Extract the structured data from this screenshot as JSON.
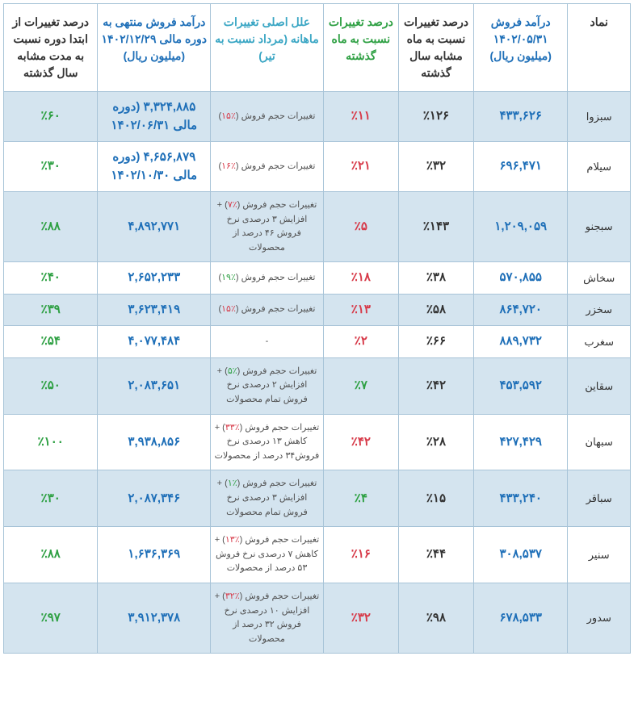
{
  "headers": [
    {
      "key": "symbol",
      "text": "نماد",
      "class": "header-black"
    },
    {
      "key": "revenue",
      "text": "درآمد فروش ۱۴۰۲/۰۵/۳۱ (میلیون ریال)",
      "class": "header-blue"
    },
    {
      "key": "pctYoY",
      "text": "درصد تغییرات نسبت به ماه مشابه سال گذشته",
      "class": "header-black"
    },
    {
      "key": "pctMoM",
      "text": "درصد تغییرات نسبت به ماه گذشته",
      "class": "header-green"
    },
    {
      "key": "reason",
      "text": "علل اصلی تغییرات ماهانه (مرداد نسبت به تیر)",
      "class": "header-teal"
    },
    {
      "key": "revenueYTD",
      "text": "درآمد فروش منتهی به دوره مالی ۱۴۰۲/۱۲/۲۹ (میلیون ریال)",
      "class": "header-blue"
    },
    {
      "key": "pctYTD",
      "text": "درصد تغییرات از ابتدا دوره نسبت به مدت مشابه سال گذشته",
      "class": "header-black"
    }
  ],
  "rows": [
    {
      "symbol": "سبزوا",
      "revenue": "۴۳۳,۶۲۶",
      "pctYoY": "٪۱۲۶",
      "pctYoYClass": "cell-black",
      "pctMoM": "٪۱۱",
      "pctMoMClass": "cell-red",
      "reasonHtml": "تغییرات حجم فروش (<span class='red'>٪۱۵</span>)",
      "revenueYTD": "۳,۳۲۴,۸۸۵ (دوره مالی ۱۴۰۲/۰۶/۳۱",
      "pctYTD": "٪۶۰",
      "pctYTDClass": "cell-green"
    },
    {
      "symbol": "سیلام",
      "revenue": "۶۹۶,۴۷۱",
      "pctYoY": "٪۳۲",
      "pctYoYClass": "cell-black",
      "pctMoM": "٪۲۱",
      "pctMoMClass": "cell-red",
      "reasonHtml": "تغییرات حجم فروش (<span class='red'>٪۱۶</span>)",
      "revenueYTD": "۴,۶۵۶,۸۷۹ (دوره مالی ۱۴۰۲/۱۰/۳۰",
      "pctYTD": "٪۳۰",
      "pctYTDClass": "cell-green"
    },
    {
      "symbol": "سبجنو",
      "revenue": "۱,۲۰۹,۰۵۹",
      "pctYoY": "٪۱۴۳",
      "pctYoYClass": "cell-black",
      "pctMoM": "٪۵",
      "pctMoMClass": "cell-red",
      "reasonHtml": "تغییرات حجم فروش (<span class='red'>٪۷</span>) + افزایش ۳ درصدی نرخ فروش ۴۶ درصد از محصولات",
      "revenueYTD": "۴,۸۹۲,۷۷۱",
      "pctYTD": "٪۸۸",
      "pctYTDClass": "cell-green"
    },
    {
      "symbol": "سخاش",
      "revenue": "۵۷۰,۸۵۵",
      "pctYoY": "٪۳۸",
      "pctYoYClass": "cell-black",
      "pctMoM": "٪۱۸",
      "pctMoMClass": "cell-red",
      "reasonHtml": "تغییرات حجم فروش (<span class='green'>٪۱۹</span>)",
      "revenueYTD": "۲,۶۵۲,۲۳۳",
      "pctYTD": "٪۴۰",
      "pctYTDClass": "cell-green"
    },
    {
      "symbol": "سخزر",
      "revenue": "۸۶۴,۷۲۰",
      "pctYoY": "٪۵۸",
      "pctYoYClass": "cell-black",
      "pctMoM": "٪۱۳",
      "pctMoMClass": "cell-red",
      "reasonHtml": "تغییرات حجم فروش (<span class='red'>٪۱۵</span>)",
      "revenueYTD": "۳,۶۲۳,۴۱۹",
      "pctYTD": "٪۳۹",
      "pctYTDClass": "cell-green"
    },
    {
      "symbol": "سغرب",
      "revenue": "۸۸۹,۷۳۲",
      "pctYoY": "٪۶۶",
      "pctYoYClass": "cell-black",
      "pctMoM": "٪۲",
      "pctMoMClass": "cell-red",
      "reasonHtml": "-",
      "revenueYTD": "۴,۰۷۷,۴۸۴",
      "pctYTD": "٪۵۴",
      "pctYTDClass": "cell-green"
    },
    {
      "symbol": "سقاین",
      "revenue": "۴۵۳,۵۹۲",
      "pctYoY": "٪۴۲",
      "pctYoYClass": "cell-black",
      "pctMoM": "٪۷",
      "pctMoMClass": "cell-green",
      "reasonHtml": "تغییرات حجم فروش (<span class='green'>٪۵</span>) + افزایش ۲ درصدی نرخ فروش تمام محصولات",
      "revenueYTD": "۲,۰۸۳,۶۵۱",
      "pctYTD": "٪۵۰",
      "pctYTDClass": "cell-green"
    },
    {
      "symbol": "سبهان",
      "revenue": "۴۲۷,۴۲۹",
      "pctYoY": "٪۲۸",
      "pctYoYClass": "cell-black",
      "pctMoM": "٪۴۲",
      "pctMoMClass": "cell-red",
      "reasonHtml": "تغییرات حجم فروش (<span class='red'>٪۳۳</span>) + کاهش ۱۳ درصدی نرخ فروش۳۴ درصد از محصولات",
      "revenueYTD": "۳,۹۳۸,۸۵۶",
      "pctYTD": "٪۱۰۰",
      "pctYTDClass": "cell-green"
    },
    {
      "symbol": "سباقر",
      "revenue": "۴۳۳,۲۴۰",
      "pctYoY": "٪۱۵",
      "pctYoYClass": "cell-black",
      "pctMoM": "٪۴",
      "pctMoMClass": "cell-green",
      "reasonHtml": "تغییرات حجم فروش (<span class='green'>٪۱</span>) + افزایش ۳ درصدی نرخ فروش تمام محصولات",
      "revenueYTD": "۲,۰۸۷,۳۴۶",
      "pctYTD": "٪۳۰",
      "pctYTDClass": "cell-green"
    },
    {
      "symbol": "سنیر",
      "revenue": "۳۰۸,۵۳۷",
      "pctYoY": "٪۴۴",
      "pctYoYClass": "cell-black",
      "pctMoM": "٪۱۶",
      "pctMoMClass": "cell-red",
      "reasonHtml": "تغییرات حجم فروش (<span class='red'>٪۱۳</span>) + کاهش ۷ درصدی نرخ فروش ۵۳ درصد از محصولات",
      "revenueYTD": "۱,۶۳۶,۳۶۹",
      "pctYTD": "٪۸۸",
      "pctYTDClass": "cell-green"
    },
    {
      "symbol": "سدور",
      "revenue": "۶۷۸,۵۳۳",
      "pctYoY": "٪۹۸",
      "pctYoYClass": "cell-black",
      "pctMoM": "٪۳۲",
      "pctMoMClass": "cell-red",
      "reasonHtml": "تغییرات حجم فروش (<span class='red'>٪۳۲</span>) + افزایش ۱۰ درصدی نرخ فروش ۳۲ درصد از محصولات",
      "revenueYTD": "۳,۹۱۲,۳۷۸",
      "pctYTD": "٪۹۷",
      "pctYTDClass": "cell-green"
    }
  ]
}
